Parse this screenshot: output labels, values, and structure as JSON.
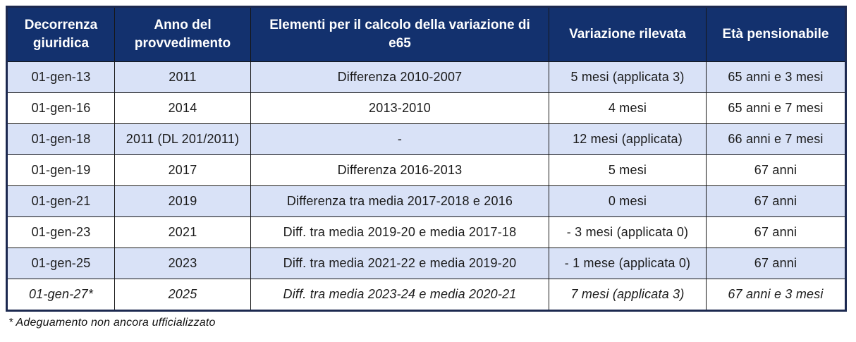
{
  "table": {
    "columns": [
      {
        "label": "Decorrenza giuridica"
      },
      {
        "label": "Anno del provvedimento"
      },
      {
        "label": "Elementi per il calcolo della variazione di e65"
      },
      {
        "label": "Variazione rilevata"
      },
      {
        "label": "Età pensionabile"
      }
    ],
    "rows": [
      {
        "highlight": true,
        "italic": false,
        "cells": [
          "01-gen-13",
          "2011",
          "Differenza 2010-2007",
          "5 mesi (applicata 3)",
          "65 anni e 3 mesi"
        ]
      },
      {
        "highlight": false,
        "italic": false,
        "cells": [
          "01-gen-16",
          "2014",
          "2013-2010",
          "4 mesi",
          "65 anni e 7 mesi"
        ]
      },
      {
        "highlight": true,
        "italic": false,
        "cells": [
          "01-gen-18",
          "2011 (DL 201/2011)",
          "-",
          "12 mesi (applicata)",
          "66 anni e 7 mesi"
        ]
      },
      {
        "highlight": false,
        "italic": false,
        "cells": [
          "01-gen-19",
          "2017",
          "Differenza 2016-2013",
          "5 mesi",
          "67 anni"
        ]
      },
      {
        "highlight": true,
        "italic": false,
        "cells": [
          "01-gen-21",
          "2019",
          "Differenza tra media 2017-2018 e 2016",
          "0 mesi",
          "67 anni"
        ]
      },
      {
        "highlight": false,
        "italic": false,
        "cells": [
          "01-gen-23",
          "2021",
          "Diff. tra media 2019-20 e media 2017-18",
          "- 3 mesi (applicata 0)",
          "67 anni"
        ]
      },
      {
        "highlight": true,
        "italic": false,
        "cells": [
          "01-gen-25",
          "2023",
          "Diff. tra media 2021-22 e media 2019-20",
          "- 1 mese (applicata 0)",
          "67 anni"
        ]
      },
      {
        "highlight": false,
        "italic": true,
        "cells": [
          "01-gen-27*",
          "2025",
          "Diff. tra media 2023-24 e media 2020-21",
          "7 mesi (applicata 3)",
          "67 anni e 3 mesi"
        ]
      }
    ]
  },
  "footnote": "* Adeguamento non ancora ufficializzato",
  "colors": {
    "header_bg": "#13316e",
    "header_text": "#ffffff",
    "row_alt_bg": "#d9e2f7",
    "row_bg": "#ffffff",
    "grid_line": "#161616",
    "outer_border": "#1c2950",
    "body_text": "#1a1a1a"
  }
}
